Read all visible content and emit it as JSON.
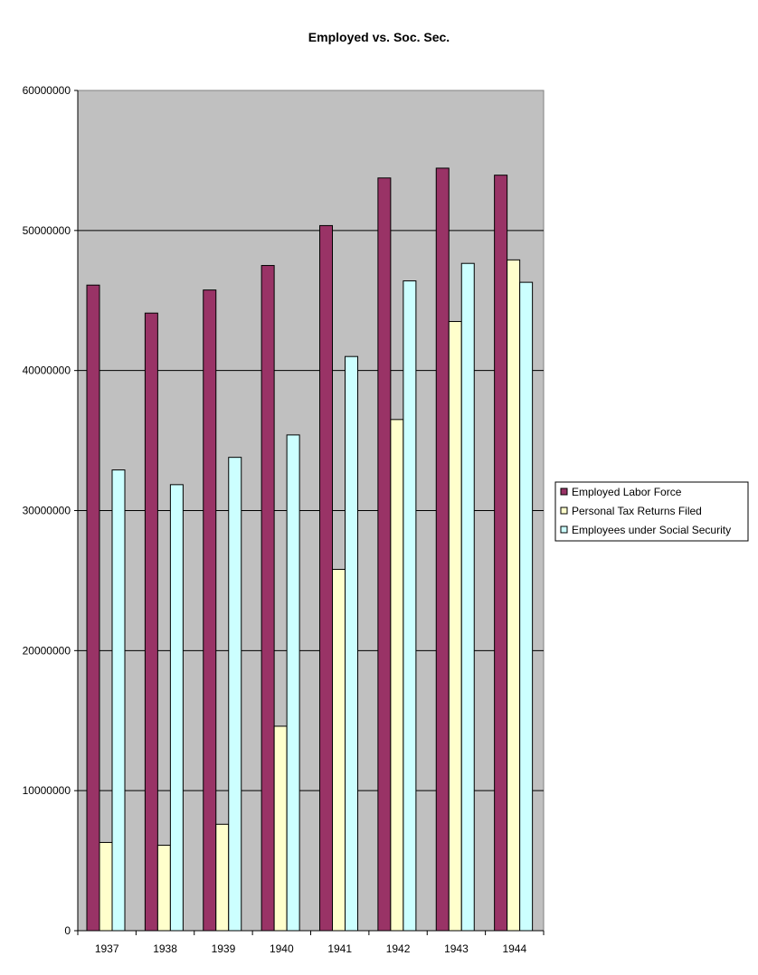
{
  "chart_data": {
    "type": "bar",
    "title": "Employed vs. Soc. Sec.",
    "xlabel": "",
    "ylabel": "",
    "categories": [
      "1937",
      "1938",
      "1939",
      "1940",
      "1941",
      "1942",
      "1943",
      "1944"
    ],
    "ylim": [
      0,
      60000000
    ],
    "yticks": [
      "0",
      "10000000",
      "20000000",
      "30000000",
      "40000000",
      "50000000",
      "60000000"
    ],
    "grid": true,
    "legend_position": "right",
    "plot_background": "#c0c0c0",
    "series": [
      {
        "name": "Employed Labor Force",
        "color": "#993366",
        "values": [
          46100000,
          44100000,
          45750000,
          47500000,
          50350000,
          53750000,
          54450000,
          53950000
        ]
      },
      {
        "name": "Personal Tax Returns Filed",
        "color": "#ffffcc",
        "values": [
          6300000,
          6100000,
          7600000,
          14600000,
          25800000,
          36500000,
          43500000,
          47900000
        ]
      },
      {
        "name": "Employees under Social Security",
        "color": "#ccffff",
        "values": [
          32900000,
          31850000,
          33800000,
          35400000,
          41000000,
          46400000,
          47650000,
          46300000
        ]
      }
    ]
  }
}
